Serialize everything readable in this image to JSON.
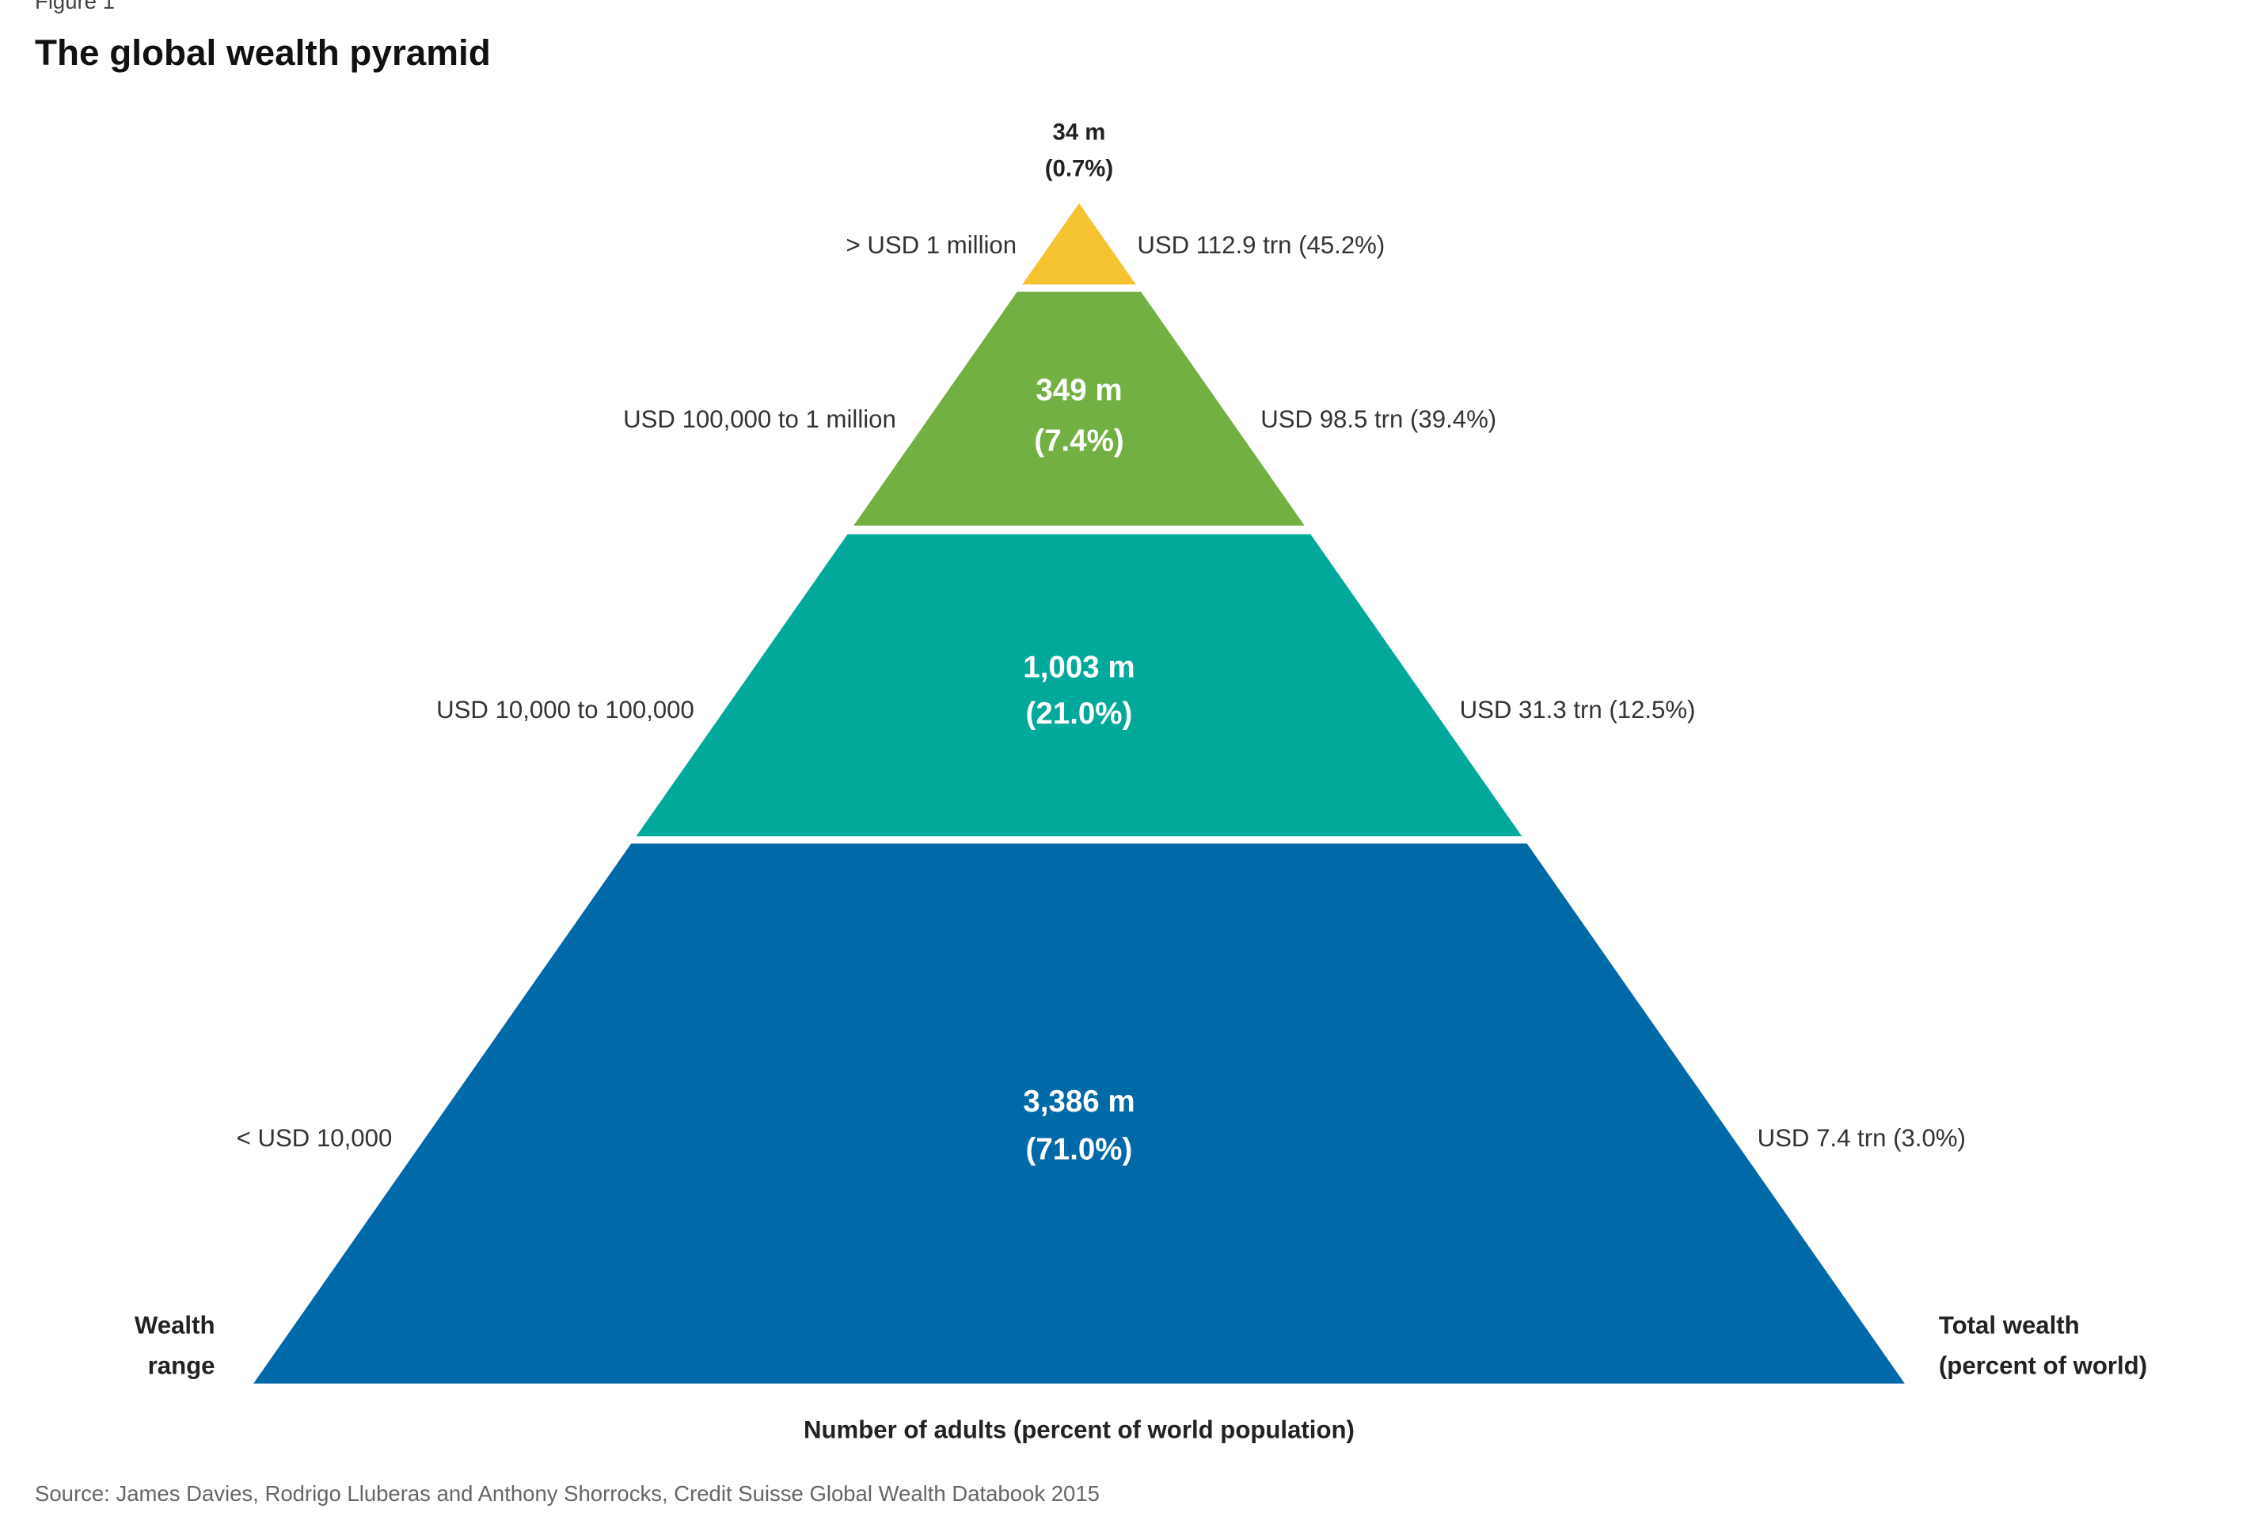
{
  "figure_label": "Figure 1",
  "title": "The global wealth pyramid",
  "tiers": [
    {
      "adults": "34 m",
      "share": "(0.7%)",
      "wealth_range": "> USD 1 million",
      "total_wealth": "USD 112.9 trn (45.2%)",
      "color": "#f5c332"
    },
    {
      "adults": "349 m",
      "share": "(7.4%)",
      "wealth_range": "USD 100,000 to 1 million",
      "total_wealth": "USD 98.5 trn (39.4%)",
      "color": "#72b043"
    },
    {
      "adults": "1,003 m",
      "share": "(21.0%)",
      "wealth_range": "USD 10,000 to 100,000",
      "total_wealth": "USD 31.3 trn (12.5%)",
      "color": "#00a99a"
    },
    {
      "adults": "3,386 m",
      "share": "(71.0%)",
      "wealth_range": "< USD 10,000",
      "total_wealth": "USD 7.4 trn (3.0%)",
      "color": "#0069a8"
    }
  ],
  "left_axis_label": [
    "Wealth",
    "range"
  ],
  "right_axis_label": [
    "Total wealth",
    "(percent of world)"
  ],
  "bottom_axis_label": "Number of adults (percent of world population)",
  "source": "Source: James Davies, Rodrigo Lluberas and Anthony Shorrocks, Credit Suisse Global Wealth Databook 2015"
}
